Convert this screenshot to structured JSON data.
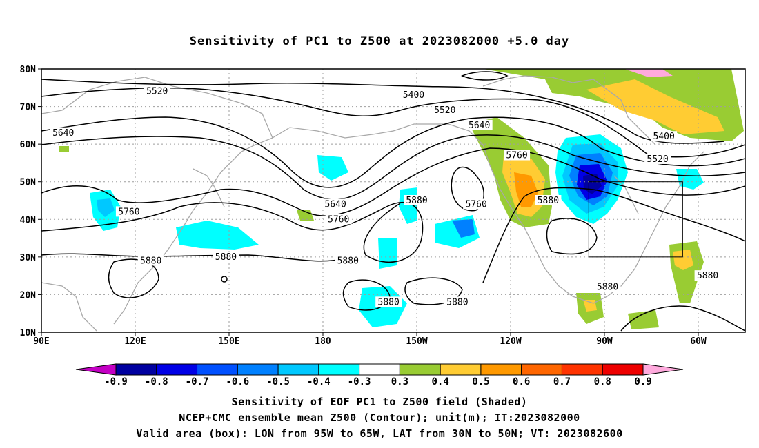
{
  "title": "Sensitivity of PC1 to Z500 at 2023082000 +5.0 day",
  "map": {
    "lat_labels": [
      "80N",
      "70N",
      "60N",
      "50N",
      "40N",
      "30N",
      "20N",
      "10N"
    ],
    "lon_labels": [
      "90E",
      "120E",
      "150E",
      "180",
      "150W",
      "120W",
      "90W",
      "60W"
    ],
    "lat_range": [
      10,
      80
    ],
    "lon_range": [
      90,
      315
    ],
    "valid_box": {
      "lon": [
        265,
        295
      ],
      "lat": [
        30,
        50
      ]
    }
  },
  "contours": {
    "unit": "m",
    "levels": [
      "5400",
      "5520",
      "5640",
      "5760",
      "5880"
    ],
    "labels": [
      {
        "text": "5520",
        "lon": 127,
        "lat": 74
      },
      {
        "text": "5400",
        "lon": 209,
        "lat": 73
      },
      {
        "text": "5520",
        "lon": 219,
        "lat": 69
      },
      {
        "text": "5640",
        "lon": 97,
        "lat": 63
      },
      {
        "text": "5640",
        "lon": 230,
        "lat": 65
      },
      {
        "text": "5760",
        "lon": 242,
        "lat": 57
      },
      {
        "text": "5400",
        "lon": 289,
        "lat": 62
      },
      {
        "text": "5520",
        "lon": 287,
        "lat": 56
      },
      {
        "text": "5760",
        "lon": 118,
        "lat": 42
      },
      {
        "text": "5640",
        "lon": 184,
        "lat": 44
      },
      {
        "text": "5760",
        "lon": 185,
        "lat": 40
      },
      {
        "text": "5880",
        "lon": 210,
        "lat": 45
      },
      {
        "text": "5760",
        "lon": 229,
        "lat": 44
      },
      {
        "text": "5880",
        "lon": 252,
        "lat": 45
      },
      {
        "text": "5880",
        "lon": 125,
        "lat": 29
      },
      {
        "text": "5880",
        "lon": 149,
        "lat": 30
      },
      {
        "text": "5880",
        "lon": 188,
        "lat": 29
      },
      {
        "text": "5880",
        "lon": 271,
        "lat": 22
      },
      {
        "text": "5880",
        "lon": 303,
        "lat": 25
      },
      {
        "text": "5880",
        "lon": 201,
        "lat": 18
      },
      {
        "text": "5880",
        "lon": 223,
        "lat": 18
      }
    ]
  },
  "colorbar": {
    "labels": [
      "-0.9",
      "-0.8",
      "-0.7",
      "-0.6",
      "-0.5",
      "-0.4",
      "-0.3",
      "0.3",
      "0.4",
      "0.5",
      "0.6",
      "0.7",
      "0.8",
      "0.9"
    ],
    "colors": [
      "#c400c4",
      "#0000a0",
      "#0000e6",
      "#0050ff",
      "#0080ff",
      "#00c8ff",
      "#00ffff",
      "#ffffff",
      "#99cc33",
      "#ffcc33",
      "#ff9900",
      "#ff6600",
      "#ff3300",
      "#ee0000",
      "#ffaadd"
    ]
  },
  "captions": {
    "line1": "Sensitivity of EOF PC1 to Z500 field (Shaded)",
    "line2": "NCEP+CMC ensemble mean Z500 (Contour); unit(m); IT:2023082000",
    "line3": "Valid area (box): LON from 95W to 65W, LAT from 30N to 50N; VT: 2023082600"
  }
}
